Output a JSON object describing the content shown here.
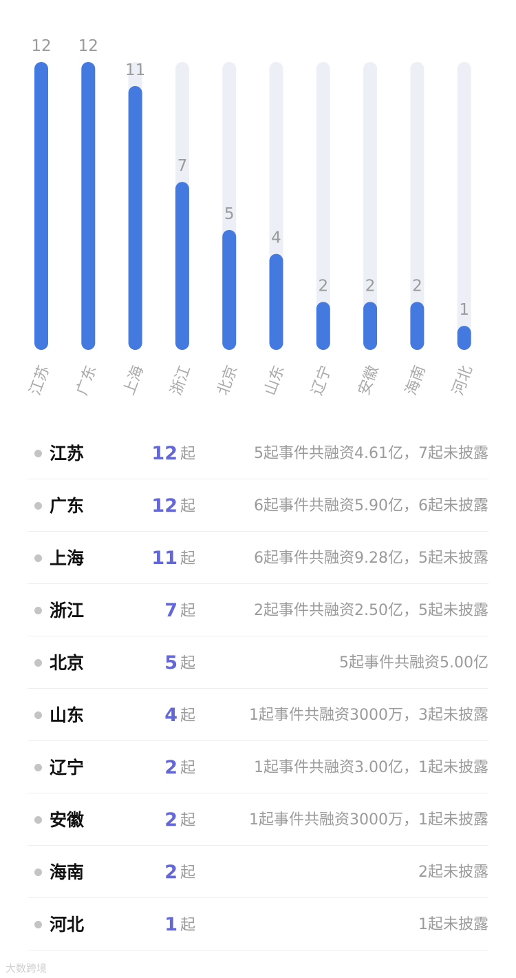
{
  "chart_data": {
    "type": "bar",
    "categories": [
      "江苏",
      "广东",
      "上海",
      "浙江",
      "北京",
      "山东",
      "辽宁",
      "安徽",
      "海南",
      "河北"
    ],
    "values": [
      12,
      12,
      11,
      7,
      5,
      4,
      2,
      2,
      2,
      1
    ],
    "ylim": [
      0,
      12
    ],
    "grid": false,
    "legend": "none",
    "colors": {
      "bar": "#4479e0",
      "track": "#eceff5",
      "value_label": "#9b9b9b",
      "axis_label": "#aaaaaa"
    }
  },
  "list": {
    "unit": "起",
    "rows": [
      {
        "name": "江苏",
        "count": "12",
        "note": "5起事件共融资4.61亿，7起未披露"
      },
      {
        "name": "广东",
        "count": "12",
        "note": "6起事件共融资5.90亿，6起未披露"
      },
      {
        "name": "上海",
        "count": "11",
        "note": "6起事件共融资9.28亿，5起未披露"
      },
      {
        "name": "浙江",
        "count": "7",
        "note": "2起事件共融资2.50亿，5起未披露"
      },
      {
        "name": "北京",
        "count": "5",
        "note": "5起事件共融资5.00亿"
      },
      {
        "name": "山东",
        "count": "4",
        "note": "1起事件共融资3000万，3起未披露"
      },
      {
        "name": "辽宁",
        "count": "2",
        "note": "1起事件共融资3.00亿，1起未披露"
      },
      {
        "name": "安徽",
        "count": "2",
        "note": "1起事件共融资3000万，1起未披露"
      },
      {
        "name": "海南",
        "count": "2",
        "note": "2起未披露"
      },
      {
        "name": "河北",
        "count": "1",
        "note": "1起未披露"
      }
    ]
  },
  "watermark": "大数跨境"
}
